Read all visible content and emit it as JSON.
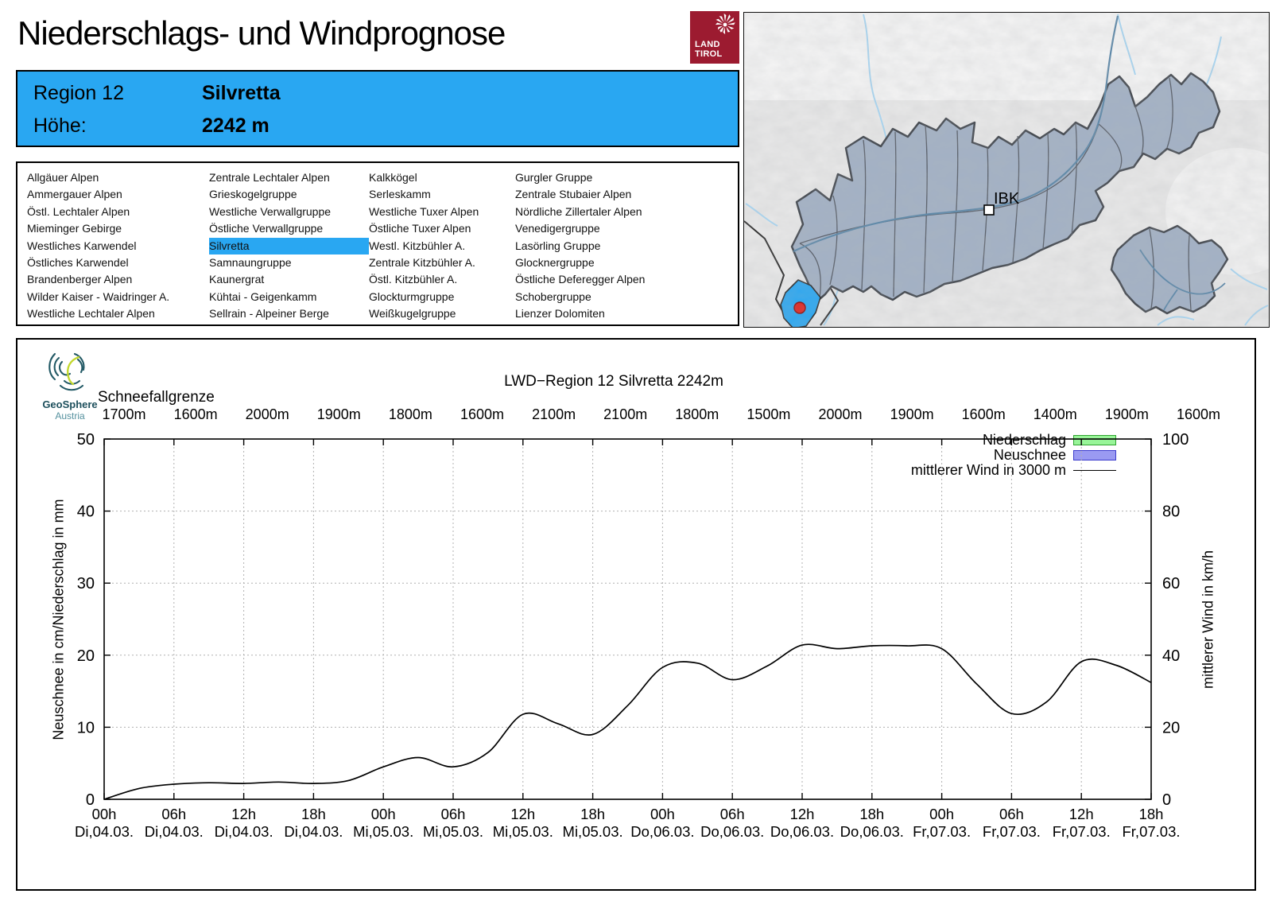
{
  "header": {
    "title": "Niederschlags- und Windprognose",
    "logo": {
      "line1": "LAND",
      "line2": "TIROL"
    }
  },
  "info_box": {
    "rows": [
      {
        "label": "Region 12",
        "value": "Silvretta"
      },
      {
        "label": "Höhe:",
        "value": "2242 m"
      }
    ]
  },
  "region_list": {
    "selected": "Silvretta",
    "columns": [
      [
        "Allgäuer Alpen",
        "Ammergauer Alpen",
        "Östl. Lechtaler Alpen",
        "Mieminger Gebirge",
        "Westliches Karwendel",
        "Östliches Karwendel",
        "Brandenberger Alpen",
        "Wilder Kaiser - Waidringer A.",
        "Westliche Lechtaler Alpen"
      ],
      [
        "Zentrale Lechtaler Alpen",
        "Grieskogelgruppe",
        "Westliche Verwallgruppe",
        "Östliche Verwallgruppe",
        "Silvretta",
        "Samnaungruppe",
        "Kaunergrat",
        "Kühtai - Geigenkamm",
        "Sellrain - Alpeiner Berge"
      ],
      [
        "Kalkkögel",
        "Serleskamm",
        "Westliche Tuxer Alpen",
        "Östliche Tuxer Alpen",
        "Westl. Kitzbühler A.",
        "Zentrale Kitzbühler A.",
        "Östl. Kitzbühler A.",
        "Glockturmgruppe",
        "Weißkugelgruppe"
      ],
      [
        "Gurgler Gruppe",
        "Zentrale Stubaier Alpen",
        "Nördliche Zillertaler Alpen",
        "Venedigergruppe",
        "Lasörling Gruppe",
        "Glocknergruppe",
        "Östliche Deferegger Alpen",
        "Schobergruppe",
        "Lienzer Dolomiten"
      ]
    ]
  },
  "map": {
    "ibk_label": "IBK"
  },
  "branding": {
    "geosphere_line1": "GeoSphere",
    "geosphere_line2": "Austria"
  },
  "colors": {
    "accent_blue": "#29a7f2",
    "land_tirol_red": "#9c1b30",
    "map_region_fill": "#a2b1c5",
    "map_highlight": "#29a7f2",
    "red_dot": "#e02420",
    "legend_green_fill": "#98f598",
    "legend_green_border": "#2fa32f",
    "legend_blue_fill": "#9a9af2",
    "legend_blue_border": "#3c3ccc",
    "wind_line": "#000000"
  },
  "chart_data": {
    "type": "line",
    "title": "LWD−Region 12 Silvretta 2242m",
    "top_axis_label": "Schneefallgrenze",
    "schneefallgrenze_m": [
      1700,
      1600,
      2000,
      1900,
      1800,
      1600,
      2100,
      2100,
      1800,
      1500,
      2000,
      1900,
      1600,
      1400,
      1900,
      1600
    ],
    "x_ticks": [
      {
        "hour": "00h",
        "date": "Di,04.03."
      },
      {
        "hour": "06h",
        "date": "Di,04.03."
      },
      {
        "hour": "12h",
        "date": "Di,04.03."
      },
      {
        "hour": "18h",
        "date": "Di,04.03."
      },
      {
        "hour": "00h",
        "date": "Mi,05.03."
      },
      {
        "hour": "06h",
        "date": "Mi,05.03."
      },
      {
        "hour": "12h",
        "date": "Mi,05.03."
      },
      {
        "hour": "18h",
        "date": "Mi,05.03."
      },
      {
        "hour": "00h",
        "date": "Do,06.03."
      },
      {
        "hour": "06h",
        "date": "Do,06.03."
      },
      {
        "hour": "12h",
        "date": "Do,06.03."
      },
      {
        "hour": "18h",
        "date": "Do,06.03."
      },
      {
        "hour": "00h",
        "date": "Fr,07.03."
      },
      {
        "hour": "06h",
        "date": "Fr,07.03."
      },
      {
        "hour": "12h",
        "date": "Fr,07.03."
      },
      {
        "hour": "18h",
        "date": "Fr,07.03."
      }
    ],
    "y_left": {
      "label": "Neuschnee in cm/Niederschlag in mm",
      "min": 0,
      "max": 50,
      "step": 10,
      "ticks": [
        0,
        10,
        20,
        30,
        40,
        50
      ]
    },
    "y_right": {
      "label": "mittlerer Wind in km/h",
      "min": 0,
      "max": 100,
      "step": 20,
      "ticks": [
        0,
        20,
        40,
        60,
        80,
        100
      ]
    },
    "legend": [
      {
        "label": "Niederschlag",
        "type": "box",
        "fill": "#98f598",
        "border": "#2fa32f"
      },
      {
        "label": "Neuschnee",
        "type": "box",
        "fill": "#9a9af2",
        "border": "#3c3ccc"
      },
      {
        "label": "mittlerer Wind in 3000 m",
        "type": "line",
        "color": "#000000"
      }
    ],
    "grid": "dotted",
    "series": [
      {
        "name": "Niederschlag",
        "unit": "mm",
        "axis": "left",
        "values": []
      },
      {
        "name": "Neuschnee",
        "unit": "cm",
        "axis": "left",
        "values": []
      },
      {
        "name": "mittlerer Wind in 3000 m",
        "unit": "km/h",
        "axis": "right",
        "x_step_hours": 3,
        "values_kmh": [
          0,
          3,
          4.2,
          4.6,
          4.4,
          4.8,
          4.4,
          5.2,
          9,
          11.6,
          9,
          13,
          23.6,
          21,
          18,
          26,
          36.6,
          37.8,
          33.2,
          37,
          42.8,
          41.8,
          42.6,
          42.6,
          41.8,
          32,
          23.8,
          27,
          38.2,
          37.2,
          32.4
        ]
      }
    ]
  }
}
